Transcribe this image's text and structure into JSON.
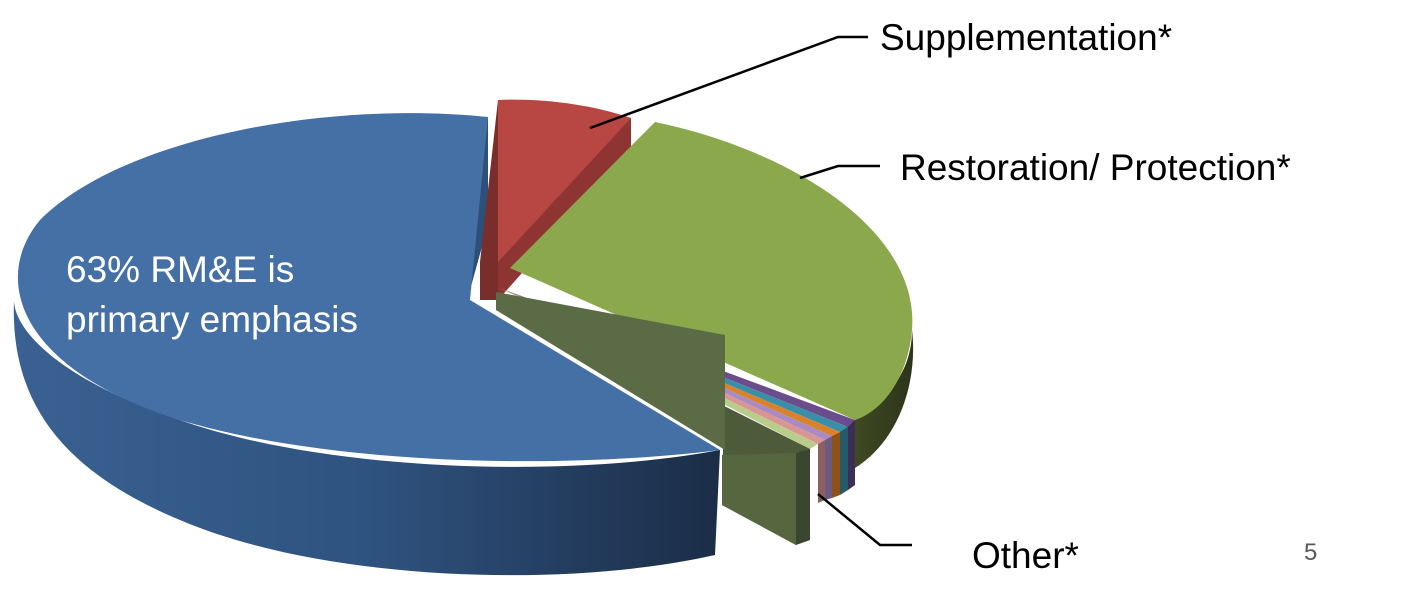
{
  "chart_data": {
    "type": "pie",
    "style": "3d-exploded",
    "slices": [
      {
        "label": "63% RM&E is primary emphasis",
        "value": 63,
        "color": "#4470A6"
      },
      {
        "label": "Supplementation*",
        "value": 5,
        "color": "#B84744"
      },
      {
        "label": "Restoration/ Protection*",
        "value": 26,
        "color": "#8BA84C"
      },
      {
        "label": "Other*",
        "value": 6,
        "color": "#5A6B45"
      }
    ],
    "other_breakdown_colors": [
      "#6B4C8C",
      "#3A8FA8",
      "#D9822B",
      "#A98BC2",
      "#D99594",
      "#B9CC8B"
    ]
  },
  "labels": {
    "main": [
      "63% RM&E is",
      "primary emphasis"
    ],
    "supplementation": "Supplementation*",
    "restoration": "Restoration/ Protection*",
    "other": "Other*"
  },
  "page_number": "5"
}
